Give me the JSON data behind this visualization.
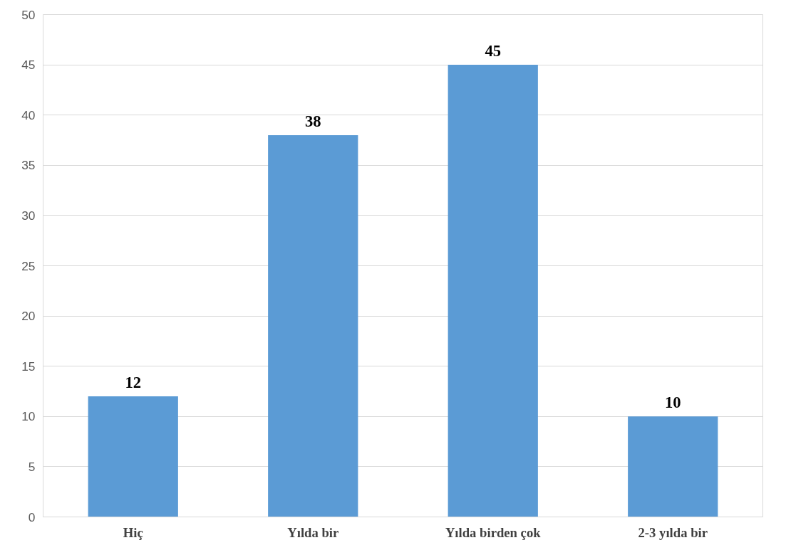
{
  "chart_data": {
    "type": "bar",
    "categories": [
      "Hiç",
      "Yılda bir",
      "Yılda birden çok",
      "2-3 yılda bir"
    ],
    "values": [
      12,
      38,
      45,
      10
    ],
    "color": "#5b9bd5",
    "ylim": [
      0,
      50
    ],
    "yticks": [
      0,
      5,
      10,
      15,
      20,
      25,
      30,
      35,
      40,
      45,
      50
    ],
    "grid": "y",
    "data_labels": true
  }
}
